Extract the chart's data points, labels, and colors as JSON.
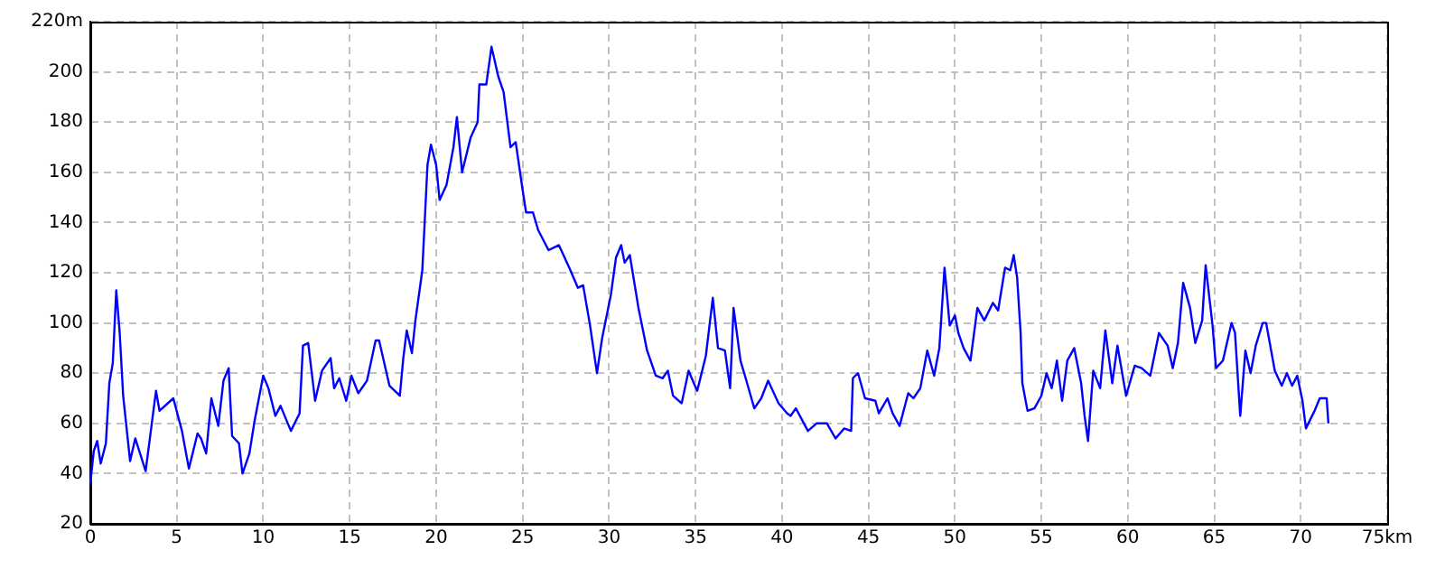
{
  "chart_data": {
    "type": "line",
    "x": [
      0,
      0.2,
      0.4,
      0.6,
      0.9,
      1.1,
      1.3,
      1.5,
      1.7,
      1.9,
      2.3,
      2.6,
      3.2,
      3.5,
      3.8,
      4.0,
      4.8,
      5.3,
      5.7,
      6.2,
      6.4,
      6.7,
      7.0,
      7.4,
      7.7,
      8.0,
      8.2,
      8.6,
      8.8,
      9.2,
      9.5,
      10.0,
      10.3,
      10.7,
      11.0,
      11.6,
      12.1,
      12.3,
      12.6,
      13.0,
      13.4,
      13.9,
      14.1,
      14.4,
      14.8,
      15.1,
      15.5,
      16.0,
      16.5,
      16.7,
      17.3,
      17.9,
      18.1,
      18.3,
      18.6,
      18.8,
      19.2,
      19.5,
      19.7,
      20.0,
      20.2,
      20.6,
      21.0,
      21.2,
      21.5,
      22.0,
      22.4,
      22.5,
      22.9,
      23.2,
      23.6,
      23.9,
      24.3,
      24.6,
      25.0,
      25.2,
      25.6,
      25.9,
      26.5,
      27.1,
      27.7,
      28.2,
      28.5,
      28.9,
      29.3,
      29.6,
      30.1,
      30.4,
      30.7,
      30.9,
      31.2,
      31.7,
      32.2,
      32.7,
      33.1,
      33.4,
      33.7,
      34.2,
      34.6,
      34.9,
      35.1,
      35.6,
      36.0,
      36.3,
      36.7,
      37.0,
      37.2,
      37.6,
      37.9,
      38.4,
      38.8,
      39.2,
      39.8,
      40.3,
      40.5,
      40.8,
      41.5,
      42.0,
      42.6,
      43.1,
      43.6,
      44.0,
      44.1,
      44.4,
      44.8,
      45.4,
      45.6,
      46.1,
      46.4,
      46.8,
      47.3,
      47.6,
      48.0,
      48.4,
      48.8,
      49.1,
      49.4,
      49.7,
      50.0,
      50.2,
      50.5,
      50.9,
      51.3,
      51.7,
      52.2,
      52.5,
      52.9,
      53.2,
      53.4,
      53.6,
      53.8,
      53.9,
      54.2,
      54.6,
      55.0,
      55.3,
      55.6,
      55.9,
      56.2,
      56.5,
      56.9,
      57.3,
      57.5,
      57.7,
      58.0,
      58.4,
      58.7,
      59.1,
      59.4,
      59.9,
      60.4,
      60.8,
      61.3,
      61.8,
      62.3,
      62.6,
      62.9,
      63.2,
      63.6,
      63.9,
      64.3,
      64.5,
      64.9,
      65.1,
      65.5,
      66.0,
      66.2,
      66.4,
      66.5,
      66.8,
      67.1,
      67.4,
      67.8,
      68.0,
      68.5,
      68.9,
      69.2,
      69.5,
      69.8,
      70.1,
      70.3,
      70.8,
      71.1,
      71.5,
      71.6
    ],
    "series": [
      {
        "color": "#0000ff",
        "values": [
          36,
          49,
          53,
          44,
          52,
          76,
          84,
          113,
          96,
          71,
          45,
          54,
          41,
          57,
          73,
          65,
          70,
          57,
          42,
          56,
          54,
          48,
          70,
          59,
          77,
          82,
          55,
          52,
          40,
          48,
          61,
          79,
          74,
          63,
          67,
          57,
          64,
          91,
          92,
          69,
          81,
          86,
          74,
          78,
          69,
          79,
          72,
          77,
          93,
          93,
          75,
          71,
          86,
          97,
          88,
          101,
          121,
          163,
          171,
          163,
          149,
          155,
          170,
          182,
          160,
          174,
          180,
          195,
          195,
          210,
          198,
          192,
          170,
          172,
          153,
          144,
          144,
          137,
          129,
          131,
          122,
          114,
          115,
          99,
          80,
          94,
          111,
          126,
          131,
          124,
          127,
          106,
          89,
          79,
          78,
          81,
          71,
          68,
          81,
          76,
          73,
          87,
          110,
          90,
          89,
          74,
          106,
          85,
          78,
          66,
          70,
          77,
          68,
          64,
          63,
          66,
          57,
          60,
          60,
          54,
          58,
          57,
          78,
          80,
          70,
          69,
          64,
          70,
          64,
          59,
          72,
          70,
          74,
          89,
          79,
          90,
          122,
          99,
          103,
          96,
          90,
          85,
          106,
          101,
          108,
          105,
          122,
          121,
          127,
          118,
          96,
          76,
          65,
          66,
          71,
          80,
          74,
          85,
          69,
          85,
          90,
          76,
          63,
          53,
          81,
          74,
          97,
          76,
          91,
          71,
          83,
          82,
          79,
          96,
          91,
          82,
          92,
          116,
          106,
          92,
          101,
          123,
          99,
          82,
          85,
          100,
          96,
          74,
          63,
          89,
          80,
          91,
          100,
          100,
          81,
          75,
          80,
          75,
          79,
          69,
          58,
          65,
          70,
          70,
          60
        ]
      }
    ],
    "xlim": [
      0,
      75
    ],
    "xticks": [
      0,
      5,
      10,
      15,
      20,
      25,
      30,
      35,
      40,
      45,
      50,
      55,
      60,
      65,
      70,
      {
        "value": 75,
        "label": "75km"
      }
    ],
    "ylim": [
      20,
      220
    ],
    "yticks": [
      20,
      40,
      60,
      80,
      100,
      120,
      140,
      160,
      180,
      200,
      {
        "value": 220,
        "label": "220m"
      }
    ],
    "grid": true,
    "marker": "none",
    "line_style": "solid",
    "legend": false
  }
}
